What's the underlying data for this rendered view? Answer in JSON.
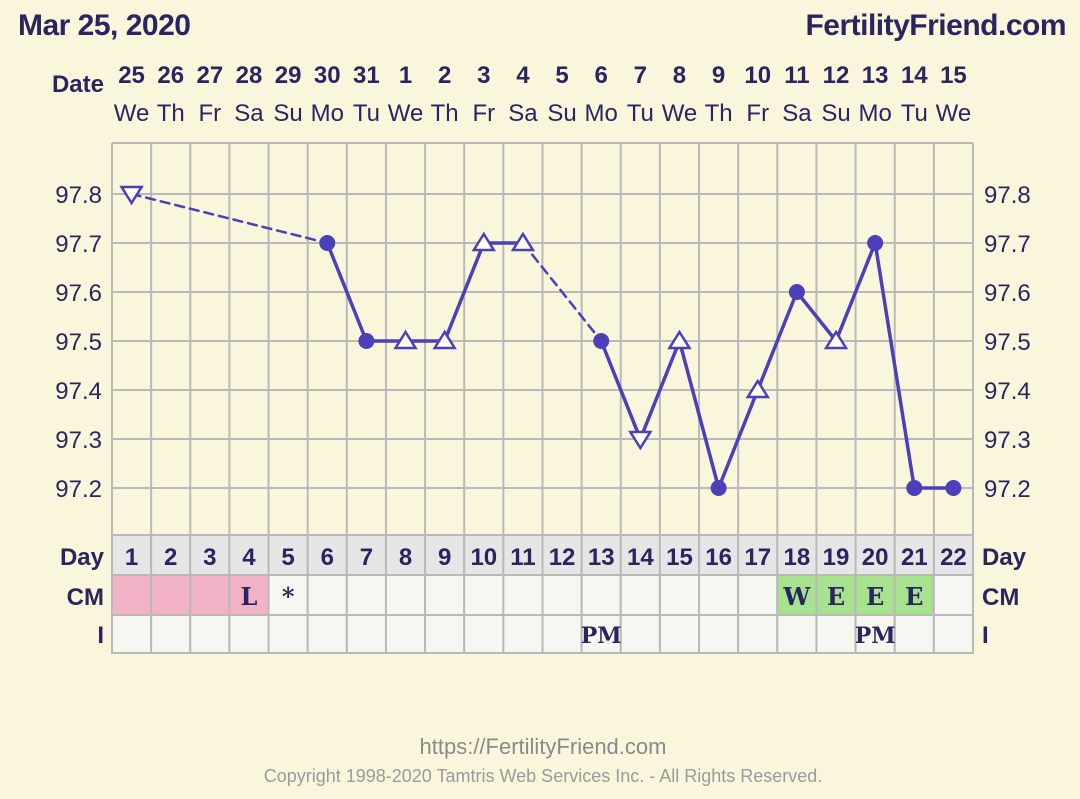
{
  "header": {
    "date": "Mar 25, 2020",
    "site": "FertilityFriend.com"
  },
  "row_labels": {
    "date": "Date",
    "day": "Day",
    "cm": "CM",
    "intercourse": "I"
  },
  "footer": {
    "url": "https://FertilityFriend.com",
    "copyright": "Copyright 1998-2020 Tamtris Web Services Inc. - All Rights Reserved."
  },
  "colors": {
    "line": "#4b3fba",
    "grid": "#b9b9b9",
    "period": "#f2b3c6",
    "fertile_cm": "#a7e28e",
    "day_row": "#e6e6e6",
    "cell_bg": "#f7f7f2",
    "plot_bg": "#faf6dc"
  },
  "chart_data": {
    "type": "line",
    "ylim": [
      97.1,
      97.9
    ],
    "yticks": [
      "97.8",
      "97.7",
      "97.6",
      "97.5",
      "97.4",
      "97.3",
      "97.2"
    ],
    "dates": [
      "25",
      "26",
      "27",
      "28",
      "29",
      "30",
      "31",
      "1",
      "2",
      "3",
      "4",
      "5",
      "6",
      "7",
      "8",
      "9",
      "10",
      "11",
      "12",
      "13",
      "14",
      "15"
    ],
    "weekdays": [
      "We",
      "Th",
      "Fr",
      "Sa",
      "Su",
      "Mo",
      "Tu",
      "We",
      "Th",
      "Fr",
      "Sa",
      "Su",
      "Mo",
      "Tu",
      "We",
      "Th",
      "Fr",
      "Sa",
      "Su",
      "Mo",
      "Tu",
      "We"
    ],
    "days": [
      "1",
      "2",
      "3",
      "4",
      "5",
      "6",
      "7",
      "8",
      "9",
      "10",
      "11",
      "12",
      "13",
      "14",
      "15",
      "16",
      "17",
      "18",
      "19",
      "20",
      "21",
      "22"
    ],
    "temperatures": [
      {
        "day": 1,
        "value": 97.8,
        "marker": "open-triangle-down"
      },
      {
        "day": 6,
        "value": 97.7,
        "marker": "dot"
      },
      {
        "day": 7,
        "value": 97.5,
        "marker": "dot"
      },
      {
        "day": 8,
        "value": 97.5,
        "marker": "open-triangle"
      },
      {
        "day": 9,
        "value": 97.5,
        "marker": "open-triangle"
      },
      {
        "day": 10,
        "value": 97.7,
        "marker": "open-triangle"
      },
      {
        "day": 11,
        "value": 97.7,
        "marker": "open-triangle"
      },
      {
        "day": 13,
        "value": 97.5,
        "marker": "dot"
      },
      {
        "day": 14,
        "value": 97.3,
        "marker": "open-triangle-down"
      },
      {
        "day": 15,
        "value": 97.5,
        "marker": "open-triangle"
      },
      {
        "day": 16,
        "value": 97.2,
        "marker": "dot"
      },
      {
        "day": 17,
        "value": 97.4,
        "marker": "open-triangle"
      },
      {
        "day": 18,
        "value": 97.6,
        "marker": "dot"
      },
      {
        "day": 19,
        "value": 97.5,
        "marker": "open-triangle"
      },
      {
        "day": 20,
        "value": 97.7,
        "marker": "dot"
      },
      {
        "day": 21,
        "value": 97.2,
        "marker": "dot"
      },
      {
        "day": 22,
        "value": 97.2,
        "marker": "dot"
      }
    ],
    "segments": [
      {
        "from_day": 1,
        "to_day": 6,
        "style": "dashed"
      },
      {
        "from_day": 6,
        "to_day": 7,
        "style": "solid"
      },
      {
        "from_day": 7,
        "to_day": 8,
        "style": "solid"
      },
      {
        "from_day": 8,
        "to_day": 9,
        "style": "solid"
      },
      {
        "from_day": 9,
        "to_day": 10,
        "style": "solid"
      },
      {
        "from_day": 10,
        "to_day": 11,
        "style": "solid"
      },
      {
        "from_day": 11,
        "to_day": 13,
        "style": "dashed"
      },
      {
        "from_day": 13,
        "to_day": 14,
        "style": "solid"
      },
      {
        "from_day": 14,
        "to_day": 15,
        "style": "solid"
      },
      {
        "from_day": 15,
        "to_day": 16,
        "style": "solid"
      },
      {
        "from_day": 16,
        "to_day": 17,
        "style": "solid"
      },
      {
        "from_day": 17,
        "to_day": 18,
        "style": "solid"
      },
      {
        "from_day": 18,
        "to_day": 19,
        "style": "solid"
      },
      {
        "from_day": 19,
        "to_day": 20,
        "style": "solid"
      },
      {
        "from_day": 20,
        "to_day": 21,
        "style": "solid"
      },
      {
        "from_day": 21,
        "to_day": 22,
        "style": "solid"
      }
    ],
    "cm": [
      {
        "day": 1,
        "text": "",
        "fill": "period"
      },
      {
        "day": 2,
        "text": "",
        "fill": "period"
      },
      {
        "day": 3,
        "text": "",
        "fill": "period"
      },
      {
        "day": 4,
        "text": "L",
        "fill": "period"
      },
      {
        "day": 5,
        "text": "*",
        "fill": ""
      },
      {
        "day": 18,
        "text": "W",
        "fill": "fertile_cm"
      },
      {
        "day": 19,
        "text": "E",
        "fill": "fertile_cm"
      },
      {
        "day": 20,
        "text": "E",
        "fill": "fertile_cm"
      },
      {
        "day": 21,
        "text": "E",
        "fill": "fertile_cm"
      }
    ],
    "intercourse": [
      {
        "day": 13,
        "text": "PM"
      },
      {
        "day": 20,
        "text": "PM"
      }
    ]
  }
}
